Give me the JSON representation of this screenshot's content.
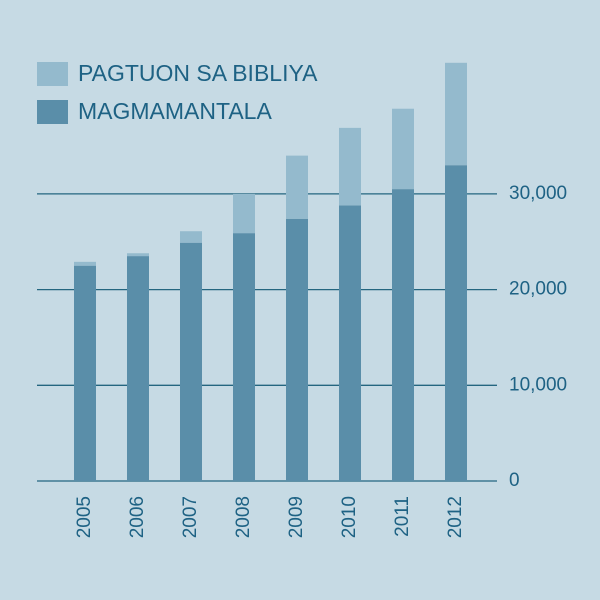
{
  "chart_data": {
    "type": "stacked_bar",
    "categories": [
      "2005",
      "2006",
      "2007",
      "2008",
      "2009",
      "2010",
      "2011",
      "2012"
    ],
    "series": [
      {
        "name": "MAGMAMANTALA",
        "color": "#5a8ea9",
        "values": [
          22500,
          23500,
          24900,
          25900,
          27400,
          28800,
          30500,
          33000
        ]
      },
      {
        "name": "PAGTUON SA BIBLIYA",
        "color": "#94bacd",
        "values": [
          400,
          300,
          1200,
          4100,
          6600,
          8100,
          8400,
          10700
        ]
      }
    ],
    "ylim": [
      0,
      50000
    ],
    "yticks": [
      0,
      {
        "value": 10000,
        "label": "10,000"
      },
      {
        "value": 20000,
        "label": "20,000"
      },
      {
        "value": 30000,
        "label": "30,000"
      }
    ],
    "grid": true
  }
}
